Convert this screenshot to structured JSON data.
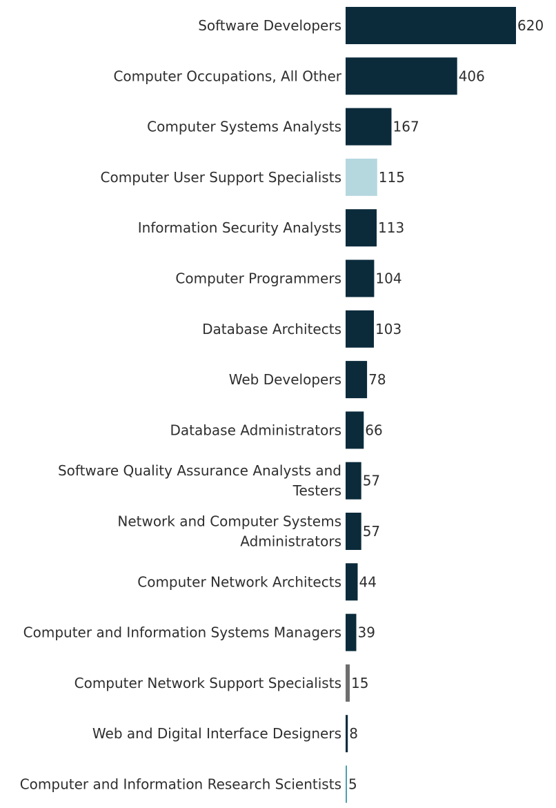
{
  "chart_data": {
    "type": "bar",
    "orientation": "horizontal",
    "categories": [
      "Software Developers",
      "Computer Occupations, All Other",
      "Computer Systems Analysts",
      "Computer User Support Specialists",
      "Information Security Analysts",
      "Computer Programmers",
      "Database Architects",
      "Web Developers",
      "Database Administrators",
      "Software Quality Assurance Analysts and Testers",
      "Network and Computer Systems Administrators",
      "Computer Network Architects",
      "Computer and Information Systems Managers",
      "Computer Network Support Specialists",
      "Web and Digital Interface Designers",
      "Computer and Information Research Scientists"
    ],
    "category_lines": [
      [
        "Software Developers"
      ],
      [
        "Computer Occupations, All Other"
      ],
      [
        "Computer Systems Analysts"
      ],
      [
        "Computer User Support Specialists"
      ],
      [
        "Information Security Analysts"
      ],
      [
        "Computer Programmers"
      ],
      [
        "Database Architects"
      ],
      [
        "Web Developers"
      ],
      [
        "Database Administrators"
      ],
      [
        "Software Quality Assurance Analysts and",
        "Testers"
      ],
      [
        "Network and Computer Systems",
        "Administrators"
      ],
      [
        "Computer Network Architects"
      ],
      [
        "Computer and Information Systems Managers"
      ],
      [
        "Computer Network Support Specialists"
      ],
      [
        "Web and Digital Interface Designers"
      ],
      [
        "Computer and Information Research Scientists"
      ]
    ],
    "values": [
      620,
      406,
      167,
      115,
      113,
      104,
      103,
      78,
      66,
      57,
      57,
      44,
      39,
      15,
      8,
      5
    ],
    "value_labels": [
      "620",
      "406",
      "167",
      "115",
      "113",
      "104",
      "103",
      "78",
      "66",
      "57",
      "57",
      "44",
      "39",
      "15",
      "8",
      "5"
    ],
    "bar_colors": [
      "#0b2b3b",
      "#0b2b3b",
      "#0b2b3b",
      "#b5d8df",
      "#0b2b3b",
      "#0b2b3b",
      "#0b2b3b",
      "#0b2b3b",
      "#0b2b3b",
      "#0b2b3b",
      "#0b2b3b",
      "#0b2b3b",
      "#0b2b3b",
      "#6e6e6e",
      "#0b2b3b",
      "#4d9eae"
    ],
    "title": "",
    "xlabel": "",
    "ylabel": "",
    "xlim": [
      0,
      620
    ],
    "grid": false,
    "legend": "none"
  }
}
